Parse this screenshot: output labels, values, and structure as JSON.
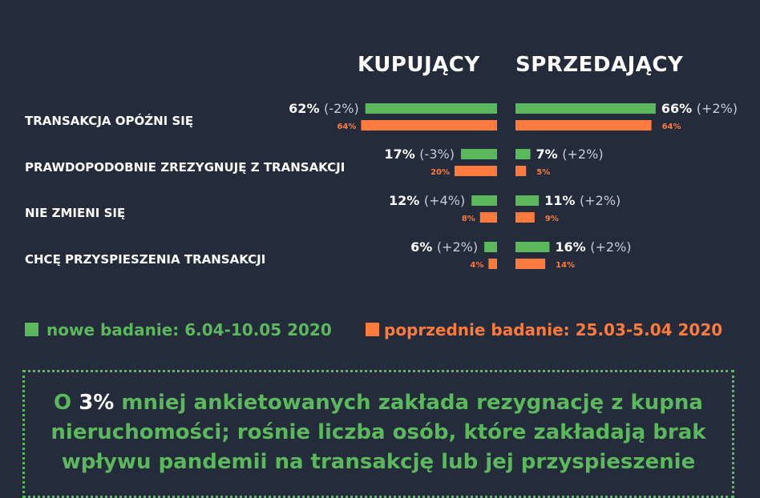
{
  "headers": {
    "buyers": "KUPUJĄCY",
    "sellers": "SPRZEDAJĄCY"
  },
  "colors": {
    "new": "#5cb85c",
    "prev": "#ff7a3d",
    "bg": "#242b3a",
    "text": "#ffffff",
    "change": "#c7ccd6"
  },
  "chart_data": {
    "type": "bar",
    "orientation": "horizontal-butterfly",
    "categories": [
      "TRANSAKCJA OPÓŹNI SIĘ",
      "PRAWDOPODOBNIE ZREZYGNUJĘ Z TRANSAKCJI",
      "NIE ZMIENI SIĘ",
      "CHCĘ PRZYSPIESZENIA TRANSAKCJI"
    ],
    "groups": [
      "KUPUJĄCY",
      "SPRZEDAJĄCY"
    ],
    "buyers": {
      "new": [
        62,
        17,
        12,
        6
      ],
      "prev": [
        64,
        20,
        8,
        4
      ],
      "new_labels": [
        "62%",
        "17%",
        "12%",
        "6%"
      ],
      "change_labels": [
        "(-2%)",
        "(-3%)",
        "(+4%)",
        "(+2%)"
      ],
      "prev_labels": [
        "64%",
        "20%",
        "8%",
        "4%"
      ]
    },
    "sellers": {
      "new": [
        66,
        7,
        11,
        16
      ],
      "prev": [
        64,
        5,
        9,
        14
      ],
      "new_labels": [
        "66%",
        "7%",
        "11%",
        "16%"
      ],
      "change_labels": [
        "(+2%)",
        "(+2%)",
        "(+2%)",
        "(+2%)"
      ],
      "prev_labels": [
        "64%",
        "5%",
        "9%",
        "14%"
      ]
    },
    "series": [
      {
        "name": "nowe badanie: 6.04-10.05 2020",
        "color": "#5cb85c"
      },
      {
        "name": "poprzednie badanie: 25.03-5.04 2020",
        "color": "#ff7a3d"
      }
    ],
    "xlim": [
      0,
      70
    ]
  },
  "legend": {
    "new": "nowe badanie: 6.04-10.05 2020",
    "prev": "poprzednie badanie: 25.03-5.04 2020"
  },
  "note": {
    "prefix": "O ",
    "highlight": "3%",
    "rest": " mniej ankietowanych zakłada rezygnację z kupna nieruchomości; rośnie liczba osób, które zakładają brak wpływu pandemii na transakcję lub jej przyspieszenie"
  }
}
